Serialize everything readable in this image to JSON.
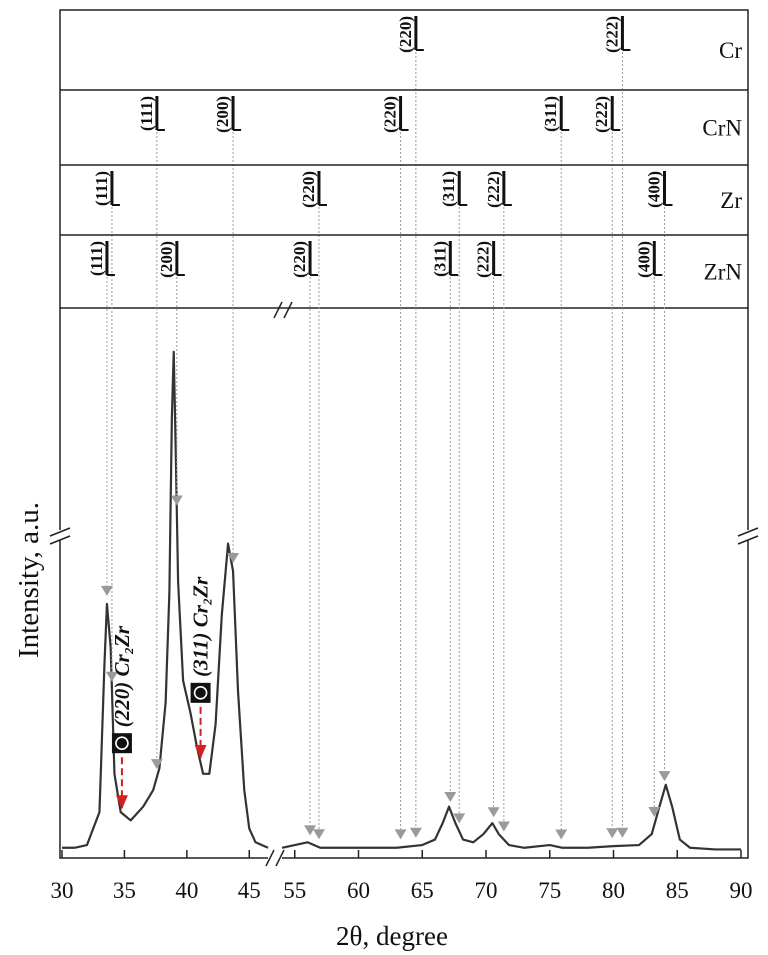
{
  "chart_data": {
    "type": "line",
    "x_label": "2θ, degree",
    "y_label": "Intensity, a.u.",
    "xlim": [
      30,
      90
    ],
    "x_break": [
      46.5,
      54
    ],
    "ylim": [
      0,
      100
    ],
    "xticks": [
      30,
      35,
      40,
      45,
      55,
      60,
      65,
      70,
      75,
      80,
      85,
      90
    ],
    "x": [
      30,
      31,
      32,
      33,
      33.4,
      33.6,
      33.9,
      34.2,
      34.7,
      35.5,
      36.5,
      37.3,
      37.8,
      38.3,
      38.6,
      38.8,
      38.95,
      39.1,
      39.3,
      39.7,
      40.3,
      40.8,
      41.3,
      41.8,
      42.3,
      42.8,
      43.3,
      43.7,
      44.1,
      44.6,
      45,
      45.5,
      46.5,
      50,
      54,
      55,
      56,
      56.5,
      57,
      58,
      60,
      63,
      65,
      66,
      66.6,
      67.1,
      67.6,
      68.2,
      69,
      69.8,
      70.5,
      71,
      71.8,
      73,
      75,
      76,
      78,
      80,
      82,
      83,
      83.6,
      84.1,
      84.6,
      85.2,
      86,
      88,
      90
    ],
    "series": [
      {
        "color": "#333333",
        "values": [
          1.5,
          1.5,
          2,
          8,
          35,
          46,
          38,
          15,
          8,
          6.5,
          9,
          12,
          16,
          28,
          48,
          80,
          92,
          75,
          50,
          32,
          26,
          20,
          15,
          15,
          24,
          44,
          57,
          52,
          30,
          12,
          5,
          2.5,
          1.5,
          null,
          1.5,
          2,
          2.5,
          2,
          1.5,
          1.5,
          1.5,
          1.5,
          2,
          3,
          6,
          9,
          6,
          3,
          2.5,
          4,
          6,
          4,
          2,
          1.5,
          2,
          1.5,
          1.5,
          1.8,
          2,
          4,
          9,
          13,
          9,
          3,
          1.5,
          1.2,
          1.2
        ]
      }
    ],
    "phases": [
      {
        "name": "Cr",
        "peaks": [
          {
            "pos": 64.5,
            "label": "(220)"
          },
          {
            "pos": 80.7,
            "label": "(222)"
          }
        ]
      },
      {
        "name": "CrN",
        "peaks": [
          {
            "pos": 37.6,
            "label": "(111)"
          },
          {
            "pos": 43.7,
            "label": "(200)"
          },
          {
            "pos": 63.3,
            "label": "(220)"
          },
          {
            "pos": 75.9,
            "label": "(311)"
          },
          {
            "pos": 79.9,
            "label": "(222)"
          }
        ]
      },
      {
        "name": "Zr",
        "peaks": [
          {
            "pos": 34.0,
            "label": "(111)"
          },
          {
            "pos": 56.9,
            "label": "(220)"
          },
          {
            "pos": 67.9,
            "label": "(311)"
          },
          {
            "pos": 71.4,
            "label": "(222)"
          },
          {
            "pos": 84.0,
            "label": "(400)"
          }
        ]
      },
      {
        "name": "ZrN",
        "peaks": [
          {
            "pos": 33.6,
            "label": "(111)"
          },
          {
            "pos": 39.2,
            "label": "(200)"
          },
          {
            "pos": 56.2,
            "label": "(220)"
          },
          {
            "pos": 67.2,
            "label": "(311)"
          },
          {
            "pos": 70.6,
            "label": "(222)"
          },
          {
            "pos": 83.2,
            "label": "(400)"
          }
        ]
      }
    ],
    "marker_color": "#9a9a9a",
    "arrow_color": "#d42020",
    "annotations": [
      {
        "text": "(220) Cr₂Zr",
        "x": 34.8
      },
      {
        "text": "(311) Cr₂Zr",
        "x": 41.1
      }
    ]
  }
}
